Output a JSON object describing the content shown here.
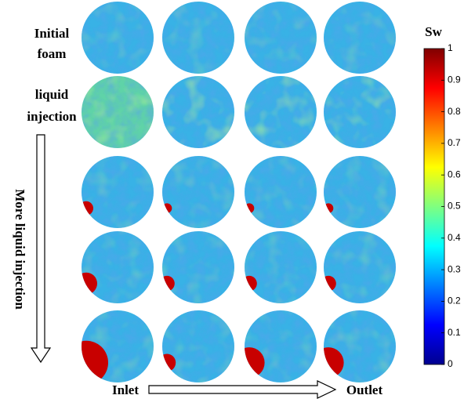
{
  "chart_data": {
    "type": "image-grid",
    "row_labels": [
      [
        "Initial",
        "foam"
      ],
      [
        "liquid",
        "injection"
      ]
    ],
    "side_label": "More liquid injection",
    "inlet_label": "Inlet",
    "outlet_label": "Outlet",
    "colorbar": {
      "label": "Sw",
      "lim": [
        0,
        1
      ],
      "ticks": [
        0,
        0.1,
        0.2,
        0.3,
        0.4,
        0.5,
        0.6,
        0.7,
        0.8,
        0.9,
        1
      ],
      "colormap": "jet"
    }
  }
}
